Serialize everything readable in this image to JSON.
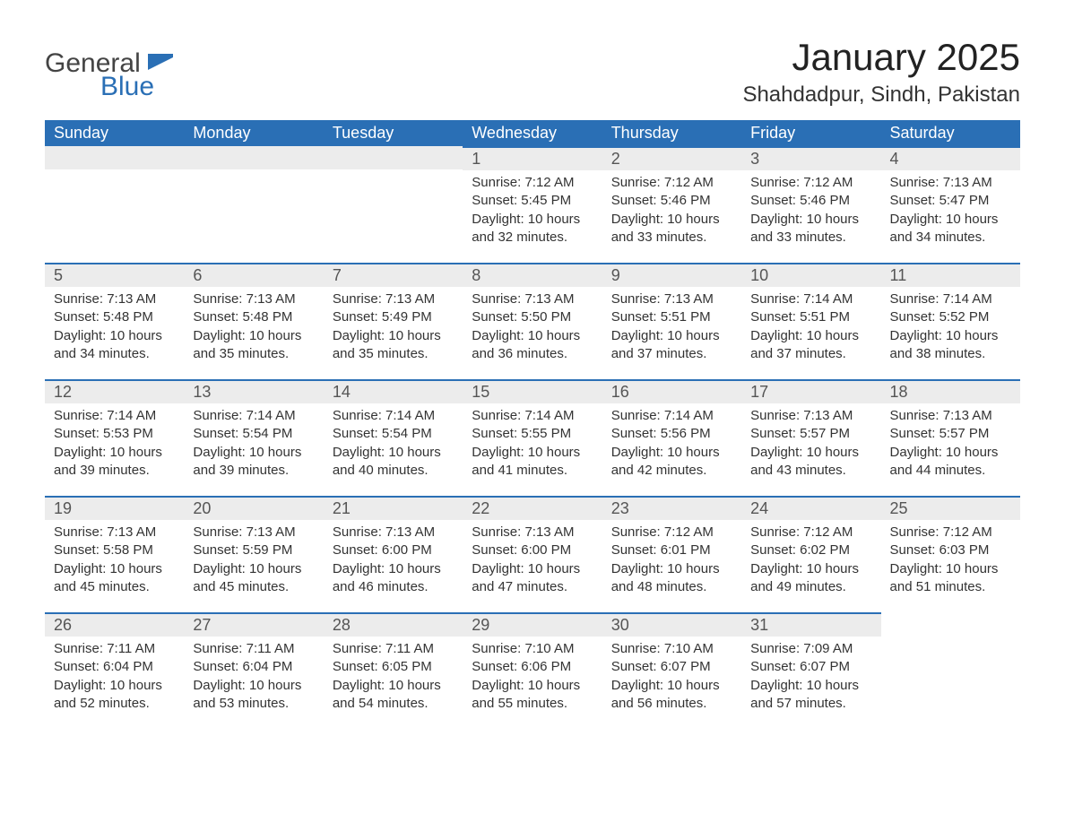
{
  "logo": {
    "word1": "General",
    "word2": "Blue"
  },
  "header": {
    "title": "January 2025",
    "location": "Shahdadpur, Sindh, Pakistan"
  },
  "style": {
    "header_bg": "#2a6fb5",
    "header_text": "#ffffff",
    "band_bg": "#ececec",
    "band_border": "#2a6fb5",
    "title_fontsize": 42,
    "location_fontsize": 24,
    "th_fontsize": 18,
    "daynum_fontsize": 18,
    "body_fontsize": 15,
    "body_color": "#333333",
    "page_bg": "#ffffff"
  },
  "weekdays": [
    "Sunday",
    "Monday",
    "Tuesday",
    "Wednesday",
    "Thursday",
    "Friday",
    "Saturday"
  ],
  "weeks": [
    [
      null,
      null,
      null,
      {
        "n": "1",
        "sunrise": "7:12 AM",
        "sunset": "5:45 PM",
        "daylight": "10 hours and 32 minutes."
      },
      {
        "n": "2",
        "sunrise": "7:12 AM",
        "sunset": "5:46 PM",
        "daylight": "10 hours and 33 minutes."
      },
      {
        "n": "3",
        "sunrise": "7:12 AM",
        "sunset": "5:46 PM",
        "daylight": "10 hours and 33 minutes."
      },
      {
        "n": "4",
        "sunrise": "7:13 AM",
        "sunset": "5:47 PM",
        "daylight": "10 hours and 34 minutes."
      }
    ],
    [
      {
        "n": "5",
        "sunrise": "7:13 AM",
        "sunset": "5:48 PM",
        "daylight": "10 hours and 34 minutes."
      },
      {
        "n": "6",
        "sunrise": "7:13 AM",
        "sunset": "5:48 PM",
        "daylight": "10 hours and 35 minutes."
      },
      {
        "n": "7",
        "sunrise": "7:13 AM",
        "sunset": "5:49 PM",
        "daylight": "10 hours and 35 minutes."
      },
      {
        "n": "8",
        "sunrise": "7:13 AM",
        "sunset": "5:50 PM",
        "daylight": "10 hours and 36 minutes."
      },
      {
        "n": "9",
        "sunrise": "7:13 AM",
        "sunset": "5:51 PM",
        "daylight": "10 hours and 37 minutes."
      },
      {
        "n": "10",
        "sunrise": "7:14 AM",
        "sunset": "5:51 PM",
        "daylight": "10 hours and 37 minutes."
      },
      {
        "n": "11",
        "sunrise": "7:14 AM",
        "sunset": "5:52 PM",
        "daylight": "10 hours and 38 minutes."
      }
    ],
    [
      {
        "n": "12",
        "sunrise": "7:14 AM",
        "sunset": "5:53 PM",
        "daylight": "10 hours and 39 minutes."
      },
      {
        "n": "13",
        "sunrise": "7:14 AM",
        "sunset": "5:54 PM",
        "daylight": "10 hours and 39 minutes."
      },
      {
        "n": "14",
        "sunrise": "7:14 AM",
        "sunset": "5:54 PM",
        "daylight": "10 hours and 40 minutes."
      },
      {
        "n": "15",
        "sunrise": "7:14 AM",
        "sunset": "5:55 PM",
        "daylight": "10 hours and 41 minutes."
      },
      {
        "n": "16",
        "sunrise": "7:14 AM",
        "sunset": "5:56 PM",
        "daylight": "10 hours and 42 minutes."
      },
      {
        "n": "17",
        "sunrise": "7:13 AM",
        "sunset": "5:57 PM",
        "daylight": "10 hours and 43 minutes."
      },
      {
        "n": "18",
        "sunrise": "7:13 AM",
        "sunset": "5:57 PM",
        "daylight": "10 hours and 44 minutes."
      }
    ],
    [
      {
        "n": "19",
        "sunrise": "7:13 AM",
        "sunset": "5:58 PM",
        "daylight": "10 hours and 45 minutes."
      },
      {
        "n": "20",
        "sunrise": "7:13 AM",
        "sunset": "5:59 PM",
        "daylight": "10 hours and 45 minutes."
      },
      {
        "n": "21",
        "sunrise": "7:13 AM",
        "sunset": "6:00 PM",
        "daylight": "10 hours and 46 minutes."
      },
      {
        "n": "22",
        "sunrise": "7:13 AM",
        "sunset": "6:00 PM",
        "daylight": "10 hours and 47 minutes."
      },
      {
        "n": "23",
        "sunrise": "7:12 AM",
        "sunset": "6:01 PM",
        "daylight": "10 hours and 48 minutes."
      },
      {
        "n": "24",
        "sunrise": "7:12 AM",
        "sunset": "6:02 PM",
        "daylight": "10 hours and 49 minutes."
      },
      {
        "n": "25",
        "sunrise": "7:12 AM",
        "sunset": "6:03 PM",
        "daylight": "10 hours and 51 minutes."
      }
    ],
    [
      {
        "n": "26",
        "sunrise": "7:11 AM",
        "sunset": "6:04 PM",
        "daylight": "10 hours and 52 minutes."
      },
      {
        "n": "27",
        "sunrise": "7:11 AM",
        "sunset": "6:04 PM",
        "daylight": "10 hours and 53 minutes."
      },
      {
        "n": "28",
        "sunrise": "7:11 AM",
        "sunset": "6:05 PM",
        "daylight": "10 hours and 54 minutes."
      },
      {
        "n": "29",
        "sunrise": "7:10 AM",
        "sunset": "6:06 PM",
        "daylight": "10 hours and 55 minutes."
      },
      {
        "n": "30",
        "sunrise": "7:10 AM",
        "sunset": "6:07 PM",
        "daylight": "10 hours and 56 minutes."
      },
      {
        "n": "31",
        "sunrise": "7:09 AM",
        "sunset": "6:07 PM",
        "daylight": "10 hours and 57 minutes."
      },
      null
    ]
  ],
  "labels": {
    "sunrise": "Sunrise:",
    "sunset": "Sunset:",
    "daylight": "Daylight:"
  }
}
